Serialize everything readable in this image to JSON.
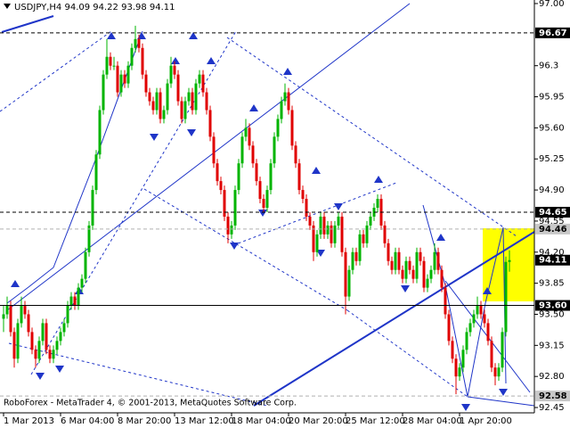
{
  "chart_data": {
    "type": "candlestick",
    "title": "USDJPY,H4  94.09 94.22 93.98 94.11",
    "footer": "RoboForex - MetaTrader 4, © 2001-2013, MetaQuotes Software Corp.",
    "up_color": "#00b400",
    "down_color": "#e00000",
    "xlim": [
      -1,
      149
    ],
    "xticks": [
      {
        "value": 0,
        "label": "1 Mar 2013"
      },
      {
        "value": 16,
        "label": "6 Mar 04:00"
      },
      {
        "value": 32,
        "label": "8 Mar 20:00"
      },
      {
        "value": 48,
        "label": "13 Mar 12:00"
      },
      {
        "value": 64,
        "label": "18 Mar 04:00"
      },
      {
        "value": 80,
        "label": "20 Mar 20:00"
      },
      {
        "value": 96,
        "label": "25 Mar 12:00"
      },
      {
        "value": 112,
        "label": "28 Mar 04:00"
      },
      {
        "value": 128,
        "label": "1 Apr 20:00"
      }
    ],
    "ylim": [
      92.37,
      97.04
    ],
    "yticks": [
      {
        "value": 97,
        "label": "97.00"
      },
      96.3,
      95.95,
      {
        "value": 95.6,
        "label": "95.60"
      },
      95.25,
      {
        "value": 94.9,
        "label": "94.90"
      },
      94.55,
      {
        "value": 94.2,
        "label": "94.20"
      },
      93.85,
      {
        "value": 93.5,
        "label": "93.50"
      },
      93.15,
      {
        "value": 92.8,
        "label": "92.80"
      },
      92.45
    ],
    "levels": [
      {
        "value": 96.67,
        "style": "dashed",
        "label_bg": "#000"
      },
      {
        "value": 94.65,
        "style": "dashed",
        "label_bg": "#000"
      },
      {
        "value": 94.46,
        "style": "light",
        "label_bg": "#c8c8c8"
      },
      {
        "value": 94.11,
        "style": "none",
        "label_bg": "#000"
      },
      {
        "value": {
          "value": 93.6,
          "label": "93.60"
        },
        "style": "solid",
        "label_bg": "#000"
      },
      {
        "value": 92.58,
        "style": "light",
        "label_bg": "#c8c8c8"
      }
    ],
    "candles": [
      [
        93.45,
        93.6,
        93.3,
        93.5
      ],
      [
        93.5,
        93.7,
        93.45,
        93.6
      ],
      [
        93.6,
        93.65,
        93.25,
        93.3
      ],
      [
        93.3,
        93.35,
        92.9,
        93.0
      ],
      [
        93.0,
        93.45,
        92.95,
        93.4
      ],
      [
        93.4,
        93.7,
        93.35,
        93.6
      ],
      [
        93.6,
        93.65,
        93.45,
        93.5
      ],
      [
        93.5,
        93.55,
        93.25,
        93.3
      ],
      [
        93.3,
        93.35,
        93.05,
        93.1
      ],
      [
        93.1,
        93.15,
        92.9,
        93.0
      ],
      [
        93.0,
        93.25,
        92.95,
        93.2
      ],
      [
        93.2,
        93.45,
        93.15,
        93.4
      ],
      [
        93.4,
        93.45,
        93.05,
        93.1
      ],
      [
        93.1,
        93.15,
        92.95,
        93.0
      ],
      [
        93.0,
        93.15,
        92.95,
        93.1
      ],
      [
        93.1,
        93.25,
        93.05,
        93.2
      ],
      [
        93.2,
        93.35,
        93.15,
        93.3
      ],
      [
        93.3,
        93.45,
        93.25,
        93.4
      ],
      [
        93.4,
        93.65,
        93.35,
        93.6
      ],
      [
        93.6,
        93.75,
        93.55,
        93.7
      ],
      [
        93.7,
        93.75,
        93.55,
        93.6
      ],
      [
        93.6,
        93.85,
        93.55,
        93.8
      ],
      [
        93.8,
        93.95,
        93.75,
        93.9
      ],
      [
        93.9,
        94.25,
        93.85,
        94.2
      ],
      [
        94.2,
        94.55,
        94.15,
        94.5
      ],
      [
        94.5,
        94.95,
        94.45,
        94.9
      ],
      [
        94.9,
        95.35,
        94.85,
        95.3
      ],
      [
        95.3,
        95.85,
        95.25,
        95.8
      ],
      [
        95.8,
        96.25,
        95.75,
        96.2
      ],
      [
        96.2,
        96.6,
        96.15,
        96.4
      ],
      [
        96.4,
        96.45,
        96.25,
        96.3
      ],
      [
        96.3,
        96.4,
        96.25,
        96.3
      ],
      [
        96.3,
        96.35,
        95.95,
        96.0
      ],
      [
        96.0,
        96.25,
        95.95,
        96.2
      ],
      [
        96.2,
        96.25,
        96.05,
        96.1
      ],
      [
        96.1,
        96.35,
        96.05,
        96.3
      ],
      [
        96.3,
        96.55,
        96.25,
        96.5
      ],
      [
        96.5,
        96.75,
        96.45,
        96.6
      ],
      [
        96.6,
        96.65,
        96.45,
        96.5
      ],
      [
        96.5,
        96.55,
        96.15,
        96.2
      ],
      [
        96.2,
        96.25,
        95.95,
        96.0
      ],
      [
        96.0,
        96.05,
        95.85,
        95.9
      ],
      [
        95.9,
        95.95,
        95.75,
        95.8
      ],
      [
        95.8,
        96.05,
        95.75,
        96.0
      ],
      [
        96.0,
        96.05,
        95.65,
        95.7
      ],
      [
        95.7,
        95.85,
        95.65,
        95.8
      ],
      [
        95.8,
        96.15,
        95.75,
        96.1
      ],
      [
        96.1,
        96.4,
        96.05,
        96.3
      ],
      [
        96.3,
        96.35,
        96.15,
        96.2
      ],
      [
        96.2,
        96.25,
        95.85,
        95.9
      ],
      [
        95.9,
        95.95,
        95.65,
        95.7
      ],
      [
        95.7,
        95.95,
        95.65,
        95.9
      ],
      [
        95.9,
        96.05,
        95.85,
        96.0
      ],
      [
        96.0,
        96.05,
        95.75,
        95.8
      ],
      [
        95.8,
        96.15,
        95.75,
        96.1
      ],
      [
        96.1,
        96.25,
        96.05,
        96.2
      ],
      [
        96.2,
        96.25,
        95.95,
        96.0
      ],
      [
        96.0,
        96.05,
        95.75,
        95.8
      ],
      [
        95.8,
        95.85,
        95.45,
        95.5
      ],
      [
        95.5,
        95.55,
        95.15,
        95.2
      ],
      [
        95.2,
        95.25,
        94.95,
        95.0
      ],
      [
        95.0,
        95.05,
        94.85,
        94.9
      ],
      [
        94.9,
        94.95,
        94.55,
        94.6
      ],
      [
        94.6,
        94.65,
        94.3,
        94.4
      ],
      [
        94.4,
        94.55,
        94.35,
        94.5
      ],
      [
        94.5,
        94.95,
        94.45,
        94.9
      ],
      [
        94.9,
        95.25,
        94.85,
        95.2
      ],
      [
        95.2,
        95.55,
        95.15,
        95.5
      ],
      [
        95.5,
        95.7,
        95.45,
        95.6
      ],
      [
        95.6,
        95.65,
        95.35,
        95.4
      ],
      [
        95.4,
        95.45,
        95.15,
        95.2
      ],
      [
        95.2,
        95.25,
        94.95,
        95.0
      ],
      [
        95.0,
        95.05,
        94.75,
        94.8
      ],
      [
        94.8,
        94.85,
        94.65,
        94.7
      ],
      [
        94.7,
        94.95,
        94.65,
        94.9
      ],
      [
        94.9,
        95.25,
        94.85,
        95.2
      ],
      [
        95.2,
        95.55,
        95.15,
        95.5
      ],
      [
        95.5,
        95.75,
        95.45,
        95.7
      ],
      [
        95.7,
        95.95,
        95.65,
        95.9
      ],
      [
        95.9,
        96.1,
        95.85,
        96.0
      ],
      [
        96.0,
        96.05,
        95.75,
        95.8
      ],
      [
        95.8,
        95.85,
        95.35,
        95.4
      ],
      [
        95.4,
        95.45,
        95.15,
        95.2
      ],
      [
        95.2,
        95.25,
        94.85,
        94.9
      ],
      [
        94.9,
        94.95,
        94.75,
        94.8
      ],
      [
        94.8,
        94.85,
        94.55,
        94.6
      ],
      [
        94.6,
        94.65,
        94.45,
        94.5
      ],
      [
        94.5,
        94.55,
        94.1,
        94.2
      ],
      [
        94.2,
        94.45,
        94.15,
        94.4
      ],
      [
        94.4,
        94.65,
        94.35,
        94.6
      ],
      [
        94.6,
        94.65,
        94.35,
        94.4
      ],
      [
        94.4,
        94.55,
        94.35,
        94.5
      ],
      [
        94.5,
        94.55,
        94.25,
        94.3
      ],
      [
        94.3,
        94.55,
        94.25,
        94.5
      ],
      [
        94.5,
        94.65,
        94.45,
        94.6
      ],
      [
        94.6,
        94.65,
        94.15,
        94.2
      ],
      [
        94.2,
        94.25,
        93.5,
        93.7
      ],
      [
        93.7,
        94.05,
        93.65,
        94.0
      ],
      [
        94.0,
        94.25,
        93.95,
        94.2
      ],
      [
        94.2,
        94.25,
        94.05,
        94.1
      ],
      [
        94.1,
        94.45,
        94.05,
        94.4
      ],
      [
        94.4,
        94.45,
        94.25,
        94.3
      ],
      [
        94.3,
        94.55,
        94.25,
        94.5
      ],
      [
        94.5,
        94.65,
        94.45,
        94.6
      ],
      [
        94.6,
        94.75,
        94.55,
        94.7
      ],
      [
        94.7,
        94.85,
        94.65,
        94.8
      ],
      [
        94.8,
        94.85,
        94.45,
        94.5
      ],
      [
        94.5,
        94.55,
        94.25,
        94.3
      ],
      [
        94.3,
        94.35,
        94.05,
        94.1
      ],
      [
        94.1,
        94.15,
        93.95,
        94.0
      ],
      [
        94.0,
        94.25,
        93.95,
        94.2
      ],
      [
        94.2,
        94.25,
        93.95,
        94.0
      ],
      [
        94.0,
        94.05,
        93.85,
        93.9
      ],
      [
        93.9,
        94.15,
        93.85,
        94.1
      ],
      [
        94.1,
        94.15,
        93.95,
        94.0
      ],
      [
        94.0,
        94.05,
        93.85,
        93.9
      ],
      [
        93.9,
        94.25,
        93.85,
        94.2
      ],
      [
        94.2,
        94.25,
        94.05,
        94.1
      ],
      [
        94.1,
        94.15,
        93.75,
        93.8
      ],
      [
        93.8,
        93.95,
        93.75,
        93.9
      ],
      [
        93.9,
        94.05,
        93.85,
        94.0
      ],
      [
        94.0,
        94.3,
        93.95,
        94.2
      ],
      [
        94.2,
        94.25,
        93.95,
        94.0
      ],
      [
        94.0,
        94.05,
        93.75,
        93.8
      ],
      [
        93.8,
        93.85,
        93.45,
        93.5
      ],
      [
        93.5,
        93.55,
        93.15,
        93.2
      ],
      [
        93.2,
        93.25,
        92.95,
        93.0
      ],
      [
        93.0,
        93.05,
        92.6,
        92.8
      ],
      [
        92.8,
        92.95,
        92.75,
        92.9
      ],
      [
        92.9,
        93.15,
        92.85,
        93.1
      ],
      [
        93.1,
        93.35,
        93.05,
        93.3
      ],
      [
        93.3,
        93.45,
        93.25,
        93.4
      ],
      [
        93.4,
        93.55,
        93.35,
        93.5
      ],
      [
        93.5,
        93.7,
        93.45,
        93.6
      ],
      [
        93.6,
        93.65,
        93.45,
        93.5
      ],
      [
        93.5,
        93.55,
        93.35,
        93.4
      ],
      [
        93.4,
        93.45,
        93.15,
        93.2
      ],
      [
        93.2,
        93.25,
        92.85,
        92.9
      ],
      [
        92.9,
        92.95,
        92.7,
        92.8
      ],
      [
        92.8,
        92.95,
        92.75,
        92.9
      ],
      [
        92.9,
        93.35,
        92.85,
        93.3
      ],
      [
        93.3,
        94.15,
        93.25,
        94.09
      ],
      [
        94.09,
        94.22,
        93.98,
        94.11
      ]
    ]
  }
}
